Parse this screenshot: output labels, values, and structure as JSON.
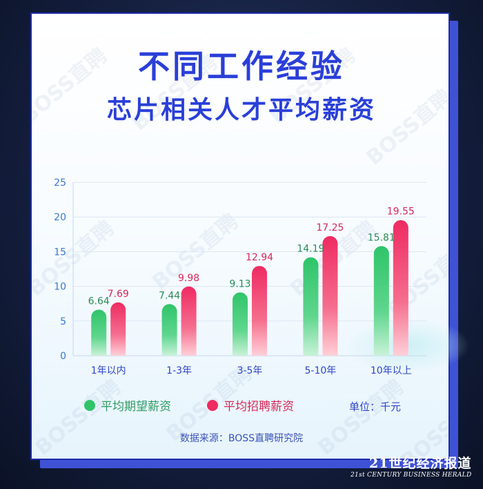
{
  "title": "不同工作经验",
  "subtitle": "芯片相关人才平均薪资",
  "watermark": "BOSS直聘",
  "unit_label": "单位：千元",
  "source": "数据来源：BOSS直聘研究院",
  "logo": {
    "line1": "21世纪经济报道",
    "line2": "21st CENTURY BUSINESS HERALD"
  },
  "colors": {
    "title": "#2a3fd8",
    "expected": "#2fc46a",
    "offered": "#ee2b62",
    "axis_text": "#3a78c8"
  },
  "chart_data": {
    "type": "bar",
    "categories": [
      "1年以内",
      "1-3年",
      "3-5年",
      "5-10年",
      "10年以上"
    ],
    "series": [
      {
        "name": "平均期望薪资",
        "values": [
          6.64,
          7.44,
          9.13,
          14.19,
          15.81
        ]
      },
      {
        "name": "平均招聘薪资",
        "values": [
          7.69,
          9.98,
          12.94,
          17.25,
          19.55
        ]
      }
    ],
    "ylim": [
      0,
      25
    ],
    "yticks": [
      0,
      5,
      10,
      15,
      20,
      25
    ],
    "grid": true,
    "legend": "bottom-left"
  }
}
